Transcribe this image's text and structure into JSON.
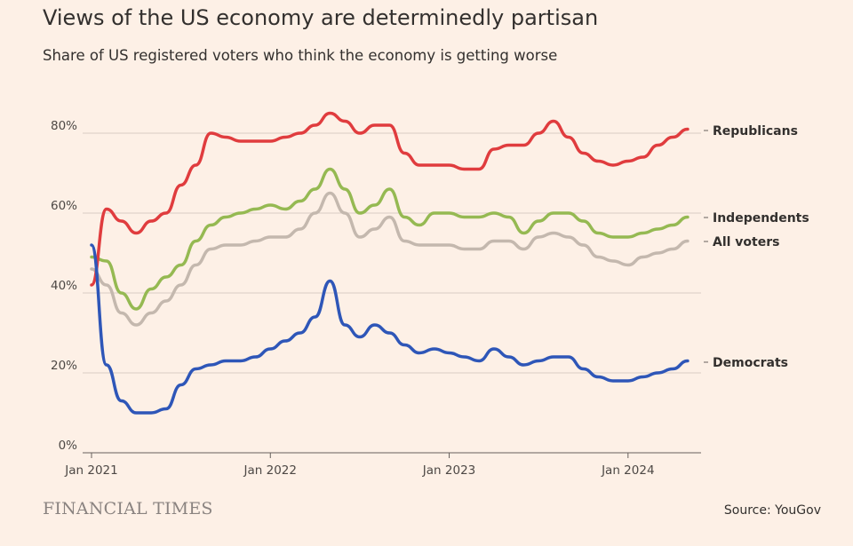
{
  "title": "Views of the US economy are determinedly partisan",
  "subtitle": "Share of US registered voters who think the economy is getting worse",
  "brand": "FINANCIAL TIMES",
  "source": "Source: YouGov",
  "chart_data": {
    "type": "line",
    "ylim": [
      0,
      90
    ],
    "xlim": [
      "2021-01",
      "2024-05"
    ],
    "y_ticks": [
      0,
      20,
      40,
      60,
      80
    ],
    "y_tick_labels": [
      "0%",
      "20%",
      "40%",
      "60%",
      "80%"
    ],
    "x_ticks": [
      "Jan 2021",
      "Jan 2022",
      "Jan 2023",
      "Jan 2024"
    ],
    "grid": "horizontal",
    "x": [
      "2021-01",
      "2021-02",
      "2021-03",
      "2021-04",
      "2021-05",
      "2021-06",
      "2021-07",
      "2021-08",
      "2021-09",
      "2021-10",
      "2021-11",
      "2021-12",
      "2022-01",
      "2022-02",
      "2022-03",
      "2022-04",
      "2022-05",
      "2022-06",
      "2022-07",
      "2022-08",
      "2022-09",
      "2022-10",
      "2022-11",
      "2022-12",
      "2023-01",
      "2023-02",
      "2023-03",
      "2023-04",
      "2023-05",
      "2023-06",
      "2023-07",
      "2023-08",
      "2023-09",
      "2023-10",
      "2023-11",
      "2023-12",
      "2024-01",
      "2024-02",
      "2024-03",
      "2024-04",
      "2024-05"
    ],
    "series": [
      {
        "name": "Republicans",
        "color": "#e03c3e",
        "values": [
          42,
          61,
          58,
          55,
          58,
          60,
          67,
          72,
          80,
          79,
          78,
          78,
          78,
          79,
          80,
          82,
          85,
          83,
          80,
          82,
          82,
          75,
          72,
          72,
          72,
          71,
          71,
          76,
          77,
          77,
          80,
          83,
          79,
          75,
          73,
          72,
          73,
          74,
          77,
          79,
          81
        ]
      },
      {
        "name": "Independents",
        "color": "#95b952",
        "values": [
          49,
          48,
          40,
          36,
          41,
          44,
          47,
          53,
          57,
          59,
          60,
          61,
          62,
          61,
          63,
          66,
          71,
          66,
          60,
          62,
          66,
          59,
          57,
          60,
          60,
          59,
          59,
          60,
          59,
          55,
          58,
          60,
          60,
          58,
          55,
          54,
          54,
          55,
          56,
          57,
          59
        ]
      },
      {
        "name": "All voters",
        "color": "#c4b8ae",
        "values": [
          46,
          42,
          35,
          32,
          35,
          38,
          42,
          47,
          51,
          52,
          52,
          53,
          54,
          54,
          56,
          60,
          65,
          60,
          54,
          56,
          59,
          53,
          52,
          52,
          52,
          51,
          51,
          53,
          53,
          51,
          54,
          55,
          54,
          52,
          49,
          48,
          47,
          49,
          50,
          51,
          53
        ]
      },
      {
        "name": "Democrats",
        "color": "#2e56b8",
        "values": [
          52,
          22,
          13,
          10,
          10,
          11,
          17,
          21,
          22,
          23,
          23,
          24,
          26,
          28,
          30,
          34,
          43,
          32,
          29,
          32,
          30,
          27,
          25,
          26,
          25,
          24,
          23,
          26,
          24,
          22,
          23,
          24,
          24,
          21,
          19,
          18,
          18,
          19,
          20,
          21,
          23
        ]
      }
    ]
  }
}
